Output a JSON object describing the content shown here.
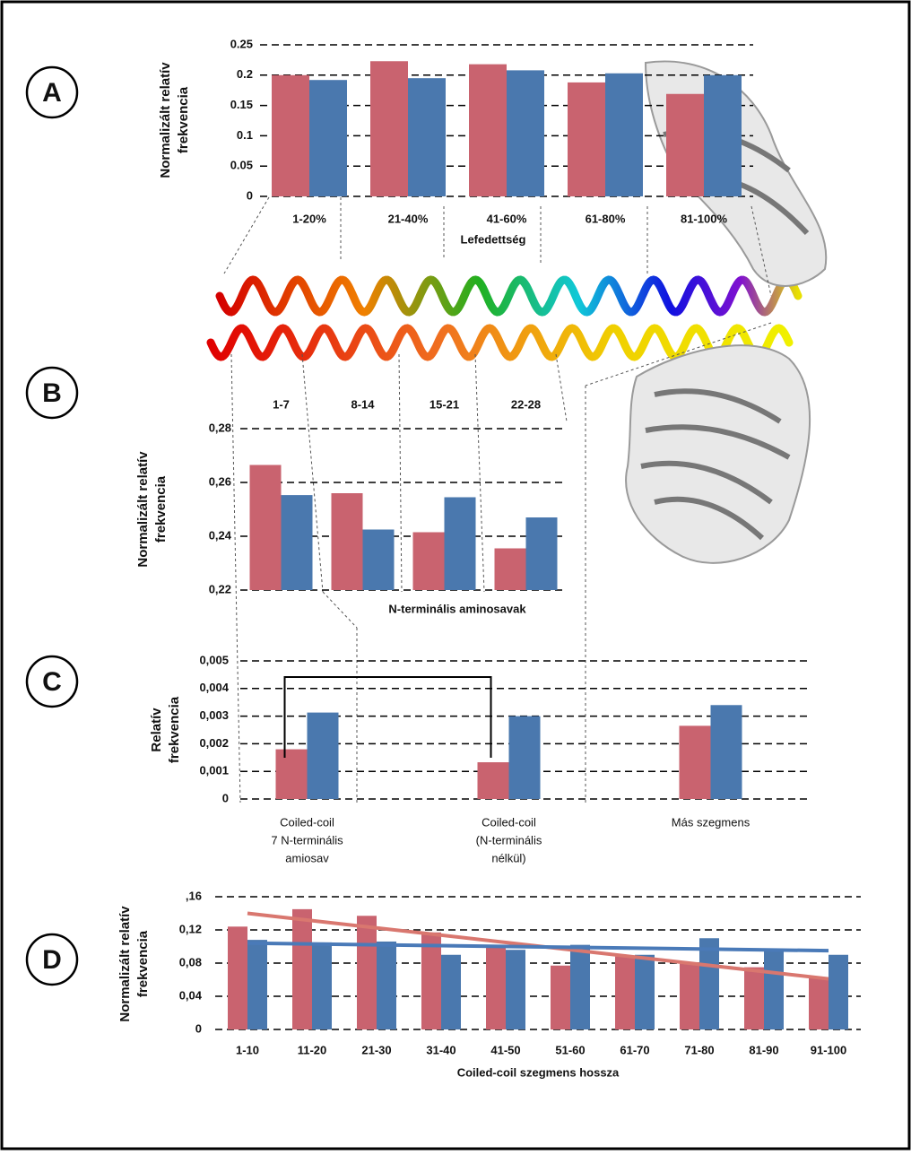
{
  "chart_data": [
    {
      "type": "bar",
      "panel": "A",
      "y_label": [
        "Normalizált relatív",
        "frekvencia"
      ],
      "x_label": "Lefedettség",
      "categories": [
        "1-20%",
        "21-40%",
        "41-60%",
        "61-80%",
        "81-100%"
      ],
      "series": [
        {
          "color": "#c9636f",
          "values": [
            0.2,
            0.223,
            0.218,
            0.188,
            0.169
          ]
        },
        {
          "color": "#4a78ae",
          "values": [
            0.192,
            0.195,
            0.208,
            0.203,
            0.2
          ]
        }
      ],
      "ylim": [
        0,
        0.25
      ],
      "yticks": [
        0,
        0.05,
        0.1,
        0.15,
        0.2,
        0.25
      ],
      "grid": true
    },
    {
      "type": "bar",
      "panel": "B",
      "y_label": [
        "Normalizált relatív",
        "frekvencia"
      ],
      "x_label": "N-terminális aminosavak",
      "categories": [
        "1-7",
        "8-14",
        "15-21",
        "22-28"
      ],
      "series": [
        {
          "color": "#c9636f",
          "values": [
            0.2665,
            0.256,
            0.2415,
            0.2355
          ]
        },
        {
          "color": "#4a78ae",
          "values": [
            0.2553,
            0.2425,
            0.2545,
            0.247
          ]
        }
      ],
      "ylim": [
        0.22,
        0.28
      ],
      "yticks": [
        {
          "value": 0.22,
          "label": "0,22"
        },
        {
          "value": 0.24,
          "label": "0,24"
        },
        {
          "value": 0.26,
          "label": "0,26"
        },
        {
          "value": 0.28,
          "label": "0,28"
        }
      ],
      "grid": true
    },
    {
      "type": "bar",
      "panel": "C",
      "y_label": [
        "Relatív",
        "frekvencia"
      ],
      "categories": [
        [
          "Coiled-coil",
          "7 N-terminális",
          "amiosav"
        ],
        [
          "Coiled-coil",
          "(N-terminális",
          "nélkül)"
        ],
        [
          "Más szegmens"
        ]
      ],
      "series": [
        {
          "color": "#c9636f",
          "values": [
            0.0018,
            0.00133,
            0.00265
          ]
        },
        {
          "color": "#4a78ae",
          "values": [
            0.00313,
            0.003,
            0.0034
          ]
        }
      ],
      "ylim": [
        0,
        0.005
      ],
      "yticks": [
        0,
        {
          "value": 0.001,
          "label": "0,001"
        },
        {
          "value": 0.002,
          "label": "0,002"
        },
        {
          "value": 0.003,
          "label": "0,003"
        },
        {
          "value": 0.004,
          "label": "0,004"
        },
        {
          "value": 0.005,
          "label": "0,005"
        }
      ],
      "grid": true
    },
    {
      "type": "bar",
      "panel": "D",
      "y_label": [
        "Normalizált relatív",
        "frekvencia"
      ],
      "x_label": "Coiled-coil szegmens hossza",
      "categories": [
        "1-10",
        "11-20",
        "21-30",
        "31-40",
        "41-50",
        "51-60",
        "61-70",
        "71-80",
        "81-90",
        "91-100"
      ],
      "series": [
        {
          "color": "#c9636f",
          "values": [
            0.124,
            0.145,
            0.137,
            0.117,
            0.1,
            0.077,
            0.088,
            0.08,
            0.075,
            0.063
          ]
        },
        {
          "color": "#4a78ae",
          "values": [
            0.108,
            0.105,
            0.106,
            0.09,
            0.096,
            0.102,
            0.09,
            0.11,
            0.097,
            0.09
          ]
        }
      ],
      "trend_lines": [
        {
          "color": "#d9776f",
          "values": [
            0.14,
            0.061
          ]
        },
        {
          "color": "#4a7ab8",
          "values": [
            0.104,
            0.095
          ]
        }
      ],
      "ylim": [
        0,
        0.16
      ],
      "yticks": [
        0,
        {
          "value": 0.04,
          "label": "0,04"
        },
        {
          "value": 0.08,
          "label": "0,08"
        },
        {
          "value": 0.12,
          "label": "0,12"
        },
        {
          "value": 0.16,
          "label": ",16"
        }
      ],
      "grid": true
    }
  ]
}
